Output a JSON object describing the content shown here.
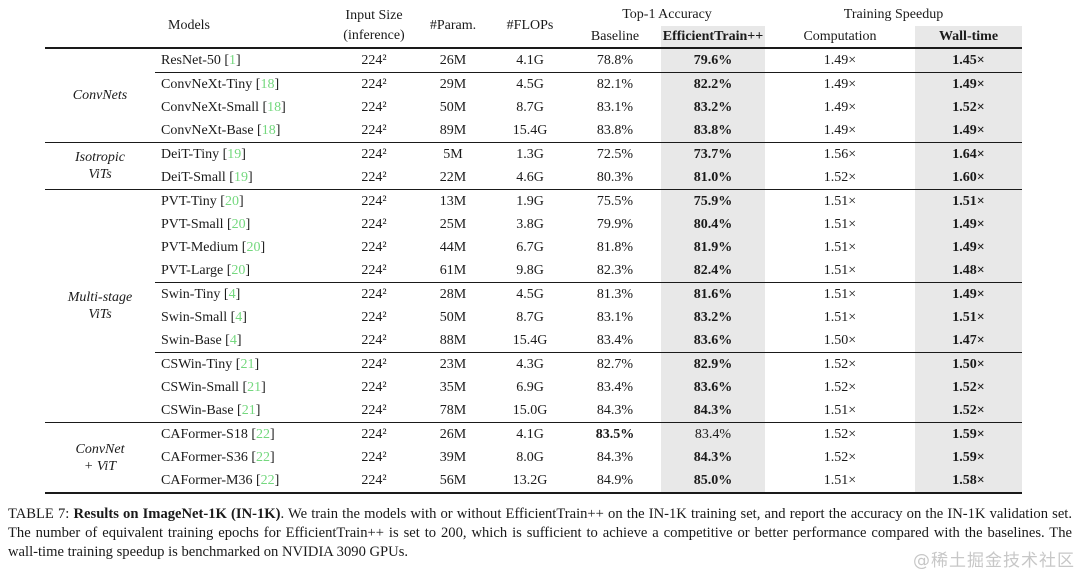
{
  "table": {
    "header": {
      "models": "Models",
      "input_size_line1": "Input Size",
      "input_size_line2": "(inference)",
      "params": "#Param.",
      "flops": "#FLOPs",
      "top1_accuracy": "Top-1 Accuracy",
      "baseline": "Baseline",
      "efficienttrain": "EfficientTrain++",
      "training_speedup": "Training Speedup",
      "computation": "Computation",
      "walltime": "Wall-time"
    },
    "groups": [
      {
        "label_lines": [
          "ConvNets"
        ],
        "rows": [
          {
            "model": "ResNet-50",
            "cite": "1",
            "input": "224²",
            "params": "26M",
            "flops": "4.1G",
            "baseline": "78.8%",
            "baseline_bold": false,
            "etpp": "79.6%",
            "etpp_bold": true,
            "comp": "1.49×",
            "walltime": "1.45×",
            "rule_after": "partial"
          },
          {
            "model": "ConvNeXt-Tiny",
            "cite": "18",
            "input": "224²",
            "params": "29M",
            "flops": "4.5G",
            "baseline": "82.1%",
            "baseline_bold": false,
            "etpp": "82.2%",
            "etpp_bold": true,
            "comp": "1.49×",
            "walltime": "1.49×",
            "rule_after": "none"
          },
          {
            "model": "ConvNeXt-Small",
            "cite": "18",
            "input": "224²",
            "params": "50M",
            "flops": "8.7G",
            "baseline": "83.1%",
            "baseline_bold": false,
            "etpp": "83.2%",
            "etpp_bold": true,
            "comp": "1.49×",
            "walltime": "1.52×",
            "rule_after": "none"
          },
          {
            "model": "ConvNeXt-Base",
            "cite": "18",
            "input": "224²",
            "params": "89M",
            "flops": "15.4G",
            "baseline": "83.8%",
            "baseline_bold": false,
            "etpp": "83.8%",
            "etpp_bold": true,
            "comp": "1.49×",
            "walltime": "1.49×",
            "rule_after": "none"
          }
        ]
      },
      {
        "label_lines": [
          "Isotropic",
          "ViTs"
        ],
        "rows": [
          {
            "model": "DeiT-Tiny",
            "cite": "19",
            "input": "224²",
            "params": "5M",
            "flops": "1.3G",
            "baseline": "72.5%",
            "baseline_bold": false,
            "etpp": "73.7%",
            "etpp_bold": true,
            "comp": "1.56×",
            "walltime": "1.64×",
            "rule_after": "none"
          },
          {
            "model": "DeiT-Small",
            "cite": "19",
            "input": "224²",
            "params": "22M",
            "flops": "4.6G",
            "baseline": "80.3%",
            "baseline_bold": false,
            "etpp": "81.0%",
            "etpp_bold": true,
            "comp": "1.52×",
            "walltime": "1.60×",
            "rule_after": "none"
          }
        ]
      },
      {
        "label_lines": [
          "Multi-stage",
          "ViTs"
        ],
        "rows": [
          {
            "model": "PVT-Tiny",
            "cite": "20",
            "input": "224²",
            "params": "13M",
            "flops": "1.9G",
            "baseline": "75.5%",
            "baseline_bold": false,
            "etpp": "75.9%",
            "etpp_bold": true,
            "comp": "1.51×",
            "walltime": "1.51×",
            "rule_after": "none"
          },
          {
            "model": "PVT-Small",
            "cite": "20",
            "input": "224²",
            "params": "25M",
            "flops": "3.8G",
            "baseline": "79.9%",
            "baseline_bold": false,
            "etpp": "80.4%",
            "etpp_bold": true,
            "comp": "1.51×",
            "walltime": "1.49×",
            "rule_after": "none"
          },
          {
            "model": "PVT-Medium",
            "cite": "20",
            "input": "224²",
            "params": "44M",
            "flops": "6.7G",
            "baseline": "81.8%",
            "baseline_bold": false,
            "etpp": "81.9%",
            "etpp_bold": true,
            "comp": "1.51×",
            "walltime": "1.49×",
            "rule_after": "none"
          },
          {
            "model": "PVT-Large",
            "cite": "20",
            "input": "224²",
            "params": "61M",
            "flops": "9.8G",
            "baseline": "82.3%",
            "baseline_bold": false,
            "etpp": "82.4%",
            "etpp_bold": true,
            "comp": "1.51×",
            "walltime": "1.48×",
            "rule_after": "partial"
          },
          {
            "model": "Swin-Tiny",
            "cite": "4",
            "input": "224²",
            "params": "28M",
            "flops": "4.5G",
            "baseline": "81.3%",
            "baseline_bold": false,
            "etpp": "81.6%",
            "etpp_bold": true,
            "comp": "1.51×",
            "walltime": "1.49×",
            "rule_after": "none"
          },
          {
            "model": "Swin-Small",
            "cite": "4",
            "input": "224²",
            "params": "50M",
            "flops": "8.7G",
            "baseline": "83.1%",
            "baseline_bold": false,
            "etpp": "83.2%",
            "etpp_bold": true,
            "comp": "1.51×",
            "walltime": "1.51×",
            "rule_after": "none"
          },
          {
            "model": "Swin-Base",
            "cite": "4",
            "input": "224²",
            "params": "88M",
            "flops": "15.4G",
            "baseline": "83.4%",
            "baseline_bold": false,
            "etpp": "83.6%",
            "etpp_bold": true,
            "comp": "1.50×",
            "walltime": "1.47×",
            "rule_after": "partial"
          },
          {
            "model": "CSWin-Tiny",
            "cite": "21",
            "input": "224²",
            "params": "23M",
            "flops": "4.3G",
            "baseline": "82.7%",
            "baseline_bold": false,
            "etpp": "82.9%",
            "etpp_bold": true,
            "comp": "1.52×",
            "walltime": "1.50×",
            "rule_after": "none"
          },
          {
            "model": "CSWin-Small",
            "cite": "21",
            "input": "224²",
            "params": "35M",
            "flops": "6.9G",
            "baseline": "83.4%",
            "baseline_bold": false,
            "etpp": "83.6%",
            "etpp_bold": true,
            "comp": "1.52×",
            "walltime": "1.52×",
            "rule_after": "none"
          },
          {
            "model": "CSWin-Base",
            "cite": "21",
            "input": "224²",
            "params": "78M",
            "flops": "15.0G",
            "baseline": "84.3%",
            "baseline_bold": false,
            "etpp": "84.3%",
            "etpp_bold": true,
            "comp": "1.51×",
            "walltime": "1.52×",
            "rule_after": "none"
          }
        ]
      },
      {
        "label_lines": [
          "ConvNet",
          "+ ViT"
        ],
        "rows": [
          {
            "model": "CAFormer-S18",
            "cite": "22",
            "input": "224²",
            "params": "26M",
            "flops": "4.1G",
            "baseline": "83.5%",
            "baseline_bold": true,
            "etpp": "83.4%",
            "etpp_bold": false,
            "comp": "1.52×",
            "walltime": "1.59×",
            "rule_after": "none"
          },
          {
            "model": "CAFormer-S36",
            "cite": "22",
            "input": "224²",
            "params": "39M",
            "flops": "8.0G",
            "baseline": "84.3%",
            "baseline_bold": false,
            "etpp": "84.3%",
            "etpp_bold": true,
            "comp": "1.52×",
            "walltime": "1.59×",
            "rule_after": "none"
          },
          {
            "model": "CAFormer-M36",
            "cite": "22",
            "input": "224²",
            "params": "56M",
            "flops": "13.2G",
            "baseline": "84.9%",
            "baseline_bold": false,
            "etpp": "85.0%",
            "etpp_bold": true,
            "comp": "1.51×",
            "walltime": "1.58×",
            "rule_after": "none"
          }
        ]
      }
    ]
  },
  "caption": {
    "prefix": "TABLE 7: ",
    "title_bold": "Results on ImageNet-1K (IN-1K)",
    "body": ". We train the models with or without EfficientTrain++ on the IN-1K training set, and report the accuracy on the IN-1K validation set. The number of equivalent training epochs for EfficientTrain++ is set to 200, which is sufficient to achieve a competitive or better performance compared with the baselines. The wall-time training speedup is benchmarked on NVIDIA 3090 GPUs."
  },
  "watermark": "@稀土掘金技术社区",
  "colors": {
    "citation_green": "#74d87e",
    "column_shade": "#e8e8e8",
    "text": "#1a1a1a",
    "watermark_gray": "#a5a5a5"
  }
}
